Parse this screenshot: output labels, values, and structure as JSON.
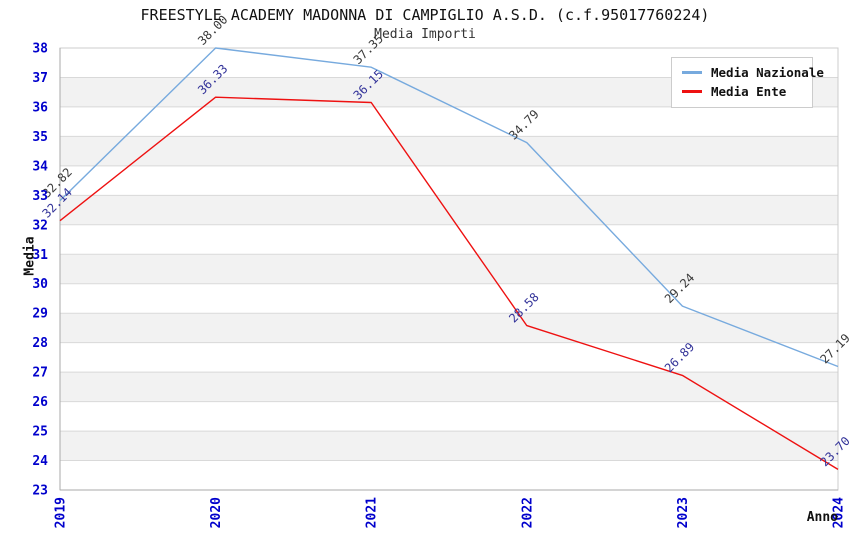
{
  "chart_data": {
    "type": "line",
    "title": "FREESTYLE ACADEMY MADONNA DI CAMPIGLIO A.S.D. (c.f.95017760224)",
    "subtitle": "Media Importi",
    "xlabel": "Anno",
    "ylabel": "Media",
    "categories": [
      "2019",
      "2020",
      "2021",
      "2022",
      "2023",
      "2024"
    ],
    "ylim": [
      23,
      38
    ],
    "ytick_step": 1,
    "grid": "horizontal-bands",
    "legend_position": "top-right",
    "value_label_decimals": 2,
    "colors": {
      "tick_label": "#0000cc",
      "band": "#f2f2f2",
      "gridline": "#d9d9d9",
      "axis": "#aaaaaa",
      "plot_border": "#cccccc"
    },
    "series": [
      {
        "name": "Media Nazionale",
        "color": "#77aade",
        "label_color": "#3a3a3a",
        "values": [
          32.82,
          38.0,
          37.35,
          34.79,
          29.24,
          27.19
        ]
      },
      {
        "name": "Media Ente",
        "color": "#ee1111",
        "label_color": "#333399",
        "values": [
          32.14,
          36.33,
          36.15,
          28.58,
          26.89,
          23.7
        ]
      }
    ]
  }
}
